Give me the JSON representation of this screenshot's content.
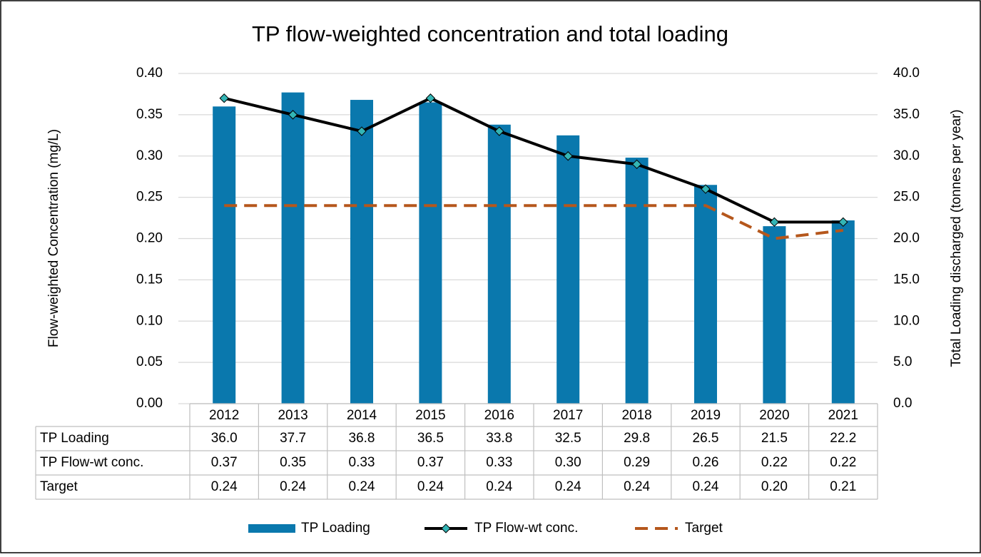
{
  "chart_data": {
    "type": "bar",
    "title": "TP flow-weighted concentration and total loading",
    "y_label": "Flow-weighted Concentration (mg/L)",
    "y2_label": "Total Loading discharged (tonnes per year)",
    "categories": [
      "2012",
      "2013",
      "2014",
      "2015",
      "2016",
      "2017",
      "2018",
      "2019",
      "2020",
      "2021"
    ],
    "series": [
      {
        "name": "TP Loading",
        "type": "bar",
        "axis": "y2",
        "color": "#0a78ad",
        "values": [
          36.0,
          37.7,
          36.8,
          36.5,
          33.8,
          32.5,
          29.8,
          26.5,
          21.5,
          22.2
        ],
        "value_labels": [
          "36.0",
          "37.7",
          "36.8",
          "36.5",
          "33.8",
          "32.5",
          "29.8",
          "26.5",
          "21.5",
          "22.2"
        ]
      },
      {
        "name": "TP Flow-wt conc.",
        "type": "line",
        "color": "#000000",
        "marker": "diamond",
        "marker_color": "#33b5b5",
        "values": [
          0.37,
          0.35,
          0.33,
          0.37,
          0.33,
          0.3,
          0.29,
          0.26,
          0.22,
          0.22
        ],
        "value_labels": [
          "0.37",
          "0.35",
          "0.33",
          "0.37",
          "0.33",
          "0.30",
          "0.29",
          "0.26",
          "0.22",
          "0.22"
        ]
      },
      {
        "name": "Target",
        "type": "line",
        "color": "#b5571c",
        "dashed": true,
        "values": [
          0.24,
          0.24,
          0.24,
          0.24,
          0.24,
          0.24,
          0.24,
          0.24,
          0.2,
          0.21
        ],
        "value_labels": [
          "0.24",
          "0.24",
          "0.24",
          "0.24",
          "0.24",
          "0.24",
          "0.24",
          "0.24",
          "0.20",
          "0.21"
        ]
      }
    ],
    "ylim": [
      0,
      0.4
    ],
    "yticks": [
      {
        "value": 0,
        "label": "0.00"
      },
      {
        "value": 0.05,
        "label": "0.05"
      },
      {
        "value": 0.1,
        "label": "0.10"
      },
      {
        "value": 0.15,
        "label": "0.15"
      },
      {
        "value": 0.2,
        "label": "0.20"
      },
      {
        "value": 0.25,
        "label": "0.25"
      },
      {
        "value": 0.3,
        "label": "0.30"
      },
      {
        "value": 0.35,
        "label": "0.35"
      },
      {
        "value": 0.4,
        "label": "0.40"
      }
    ],
    "y2lim": [
      0,
      40
    ],
    "y2ticks": [
      {
        "value": 0,
        "label": "0.0"
      },
      {
        "value": 5,
        "label": "5.0"
      },
      {
        "value": 10,
        "label": "10.0"
      },
      {
        "value": 15,
        "label": "15.0"
      },
      {
        "value": 20,
        "label": "20.0"
      },
      {
        "value": 25,
        "label": "25.0"
      },
      {
        "value": 30,
        "label": "30.0"
      },
      {
        "value": 35,
        "label": "35.0"
      },
      {
        "value": 40,
        "label": "40.0"
      }
    ],
    "grid": true,
    "legend": "bottom",
    "data_table": true
  }
}
